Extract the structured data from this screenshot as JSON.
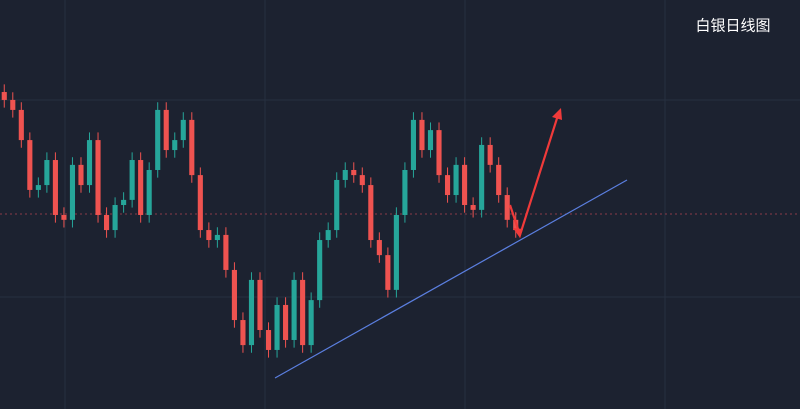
{
  "chart_data": {
    "type": "candlestick",
    "title": "白银日线图",
    "ylim": [
      14,
      30
    ],
    "up_color": "#26a69a",
    "down_color": "#ef5350",
    "open": [
      26.4,
      26.09,
      25.7,
      24.52,
      22.57,
      22.76,
      23.74,
      21.59,
      21.4,
      23.55,
      22.76,
      24.52,
      21.59,
      21.0,
      21.98,
      22.18,
      23.74,
      21.59,
      23.35,
      25.7,
      24.13,
      24.52,
      25.31,
      23.15,
      21.0,
      20.61,
      20.81,
      19.44,
      17.48,
      16.5,
      19.05,
      17.09,
      16.31,
      18.07,
      16.7,
      19.05,
      16.5,
      18.26,
      20.61,
      21.0,
      22.96,
      23.35,
      23.15,
      22.76,
      20.61,
      20.02,
      18.66,
      21.59,
      23.35,
      25.31,
      24.13,
      24.91,
      23.15,
      22.37,
      23.55,
      21.98,
      21.79,
      24.33,
      23.55,
      22.37,
      21.4
    ],
    "high": [
      26.7,
      26.39,
      26.0,
      24.82,
      23.06,
      24.04,
      24.04,
      21.89,
      23.85,
      23.85,
      24.82,
      24.82,
      21.89,
      22.28,
      22.48,
      24.04,
      24.04,
      23.65,
      26.0,
      26.0,
      24.82,
      25.61,
      25.61,
      23.45,
      21.3,
      21.11,
      21.11,
      19.74,
      17.78,
      19.35,
      19.35,
      17.39,
      18.37,
      18.37,
      19.35,
      19.35,
      18.56,
      20.91,
      21.3,
      23.26,
      23.65,
      23.65,
      23.45,
      23.06,
      20.91,
      20.32,
      21.89,
      23.65,
      25.61,
      25.61,
      25.21,
      25.21,
      23.45,
      23.85,
      23.85,
      22.28,
      24.63,
      24.63,
      23.85,
      22.67,
      21.7
    ],
    "low": [
      25.79,
      25.4,
      24.22,
      22.27,
      22.27,
      22.46,
      21.29,
      21.1,
      21.1,
      22.46,
      22.46,
      21.29,
      20.7,
      20.7,
      21.68,
      21.88,
      21.29,
      21.29,
      23.05,
      23.83,
      23.83,
      24.22,
      22.85,
      20.7,
      20.31,
      20.31,
      19.14,
      17.18,
      16.2,
      16.2,
      16.79,
      16.01,
      16.01,
      16.4,
      16.4,
      16.2,
      16.2,
      17.96,
      20.31,
      20.7,
      22.66,
      22.85,
      22.46,
      20.31,
      19.72,
      18.36,
      18.36,
      21.29,
      23.05,
      23.83,
      23.83,
      22.85,
      22.07,
      22.07,
      21.68,
      21.49,
      21.49,
      23.25,
      22.07,
      21.1,
      20.7
    ],
    "close": [
      26.09,
      25.7,
      24.52,
      22.57,
      22.76,
      23.74,
      21.59,
      21.4,
      23.55,
      22.76,
      24.52,
      21.59,
      21.0,
      21.98,
      22.18,
      23.74,
      21.59,
      23.35,
      25.7,
      24.13,
      24.52,
      25.31,
      23.15,
      21.0,
      20.61,
      20.81,
      19.44,
      17.48,
      16.5,
      19.05,
      17.09,
      16.31,
      18.07,
      16.7,
      19.05,
      16.5,
      18.26,
      20.61,
      21.0,
      22.96,
      23.35,
      23.15,
      22.76,
      20.61,
      20.02,
      18.66,
      21.59,
      23.35,
      25.31,
      24.13,
      24.91,
      23.15,
      22.37,
      23.55,
      21.98,
      21.79,
      24.33,
      23.55,
      22.37,
      21.4,
      21.0
    ]
  }
}
